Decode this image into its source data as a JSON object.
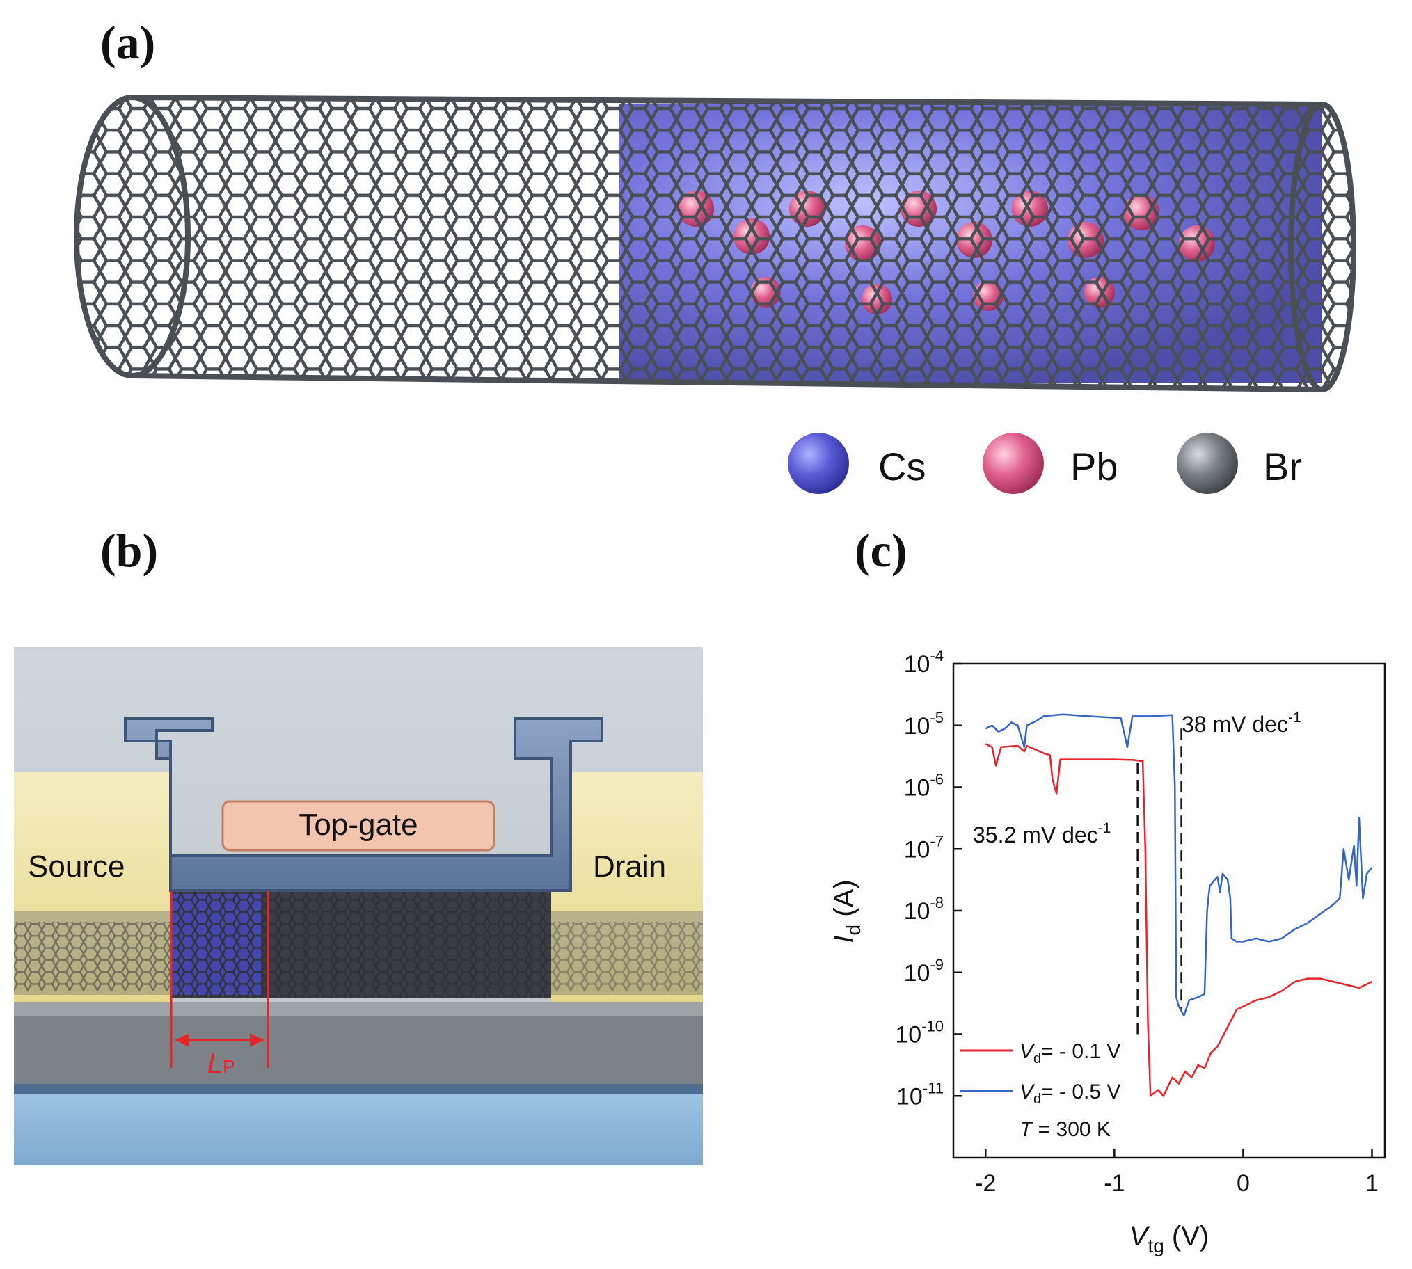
{
  "panels": {
    "a": {
      "label": "(a)"
    },
    "b": {
      "label": "(b)"
    },
    "c": {
      "label": "(c)"
    }
  },
  "legend_a": [
    {
      "symbol": "Cs",
      "color": "#5b5bd6"
    },
    {
      "symbol": "Pb",
      "color": "#e0608e"
    },
    {
      "symbol": "Br",
      "color": "#6e7378"
    }
  ],
  "device": {
    "source": "Source",
    "drain": "Drain",
    "top_gate": "Top-gate",
    "lp_main": "L",
    "lp_sub": "P"
  },
  "chart_data": {
    "type": "line",
    "xlabel_main": "V",
    "xlabel_sub": "tg",
    "xlabel_unit": " (V)",
    "ylabel_main": "I",
    "ylabel_sub": "d",
    "ylabel_unit": " (A)",
    "xlim": [
      -2.25,
      1.1
    ],
    "ylim_log10": [
      -12,
      -4
    ],
    "y_scale": "log",
    "x_ticks": [
      -2,
      -1,
      0,
      1
    ],
    "x_tick_labels": [
      "-2",
      "-1",
      "0",
      "1"
    ],
    "y_ticks_log10": [
      -11,
      -10,
      -9,
      -8,
      -7,
      -6,
      -5,
      -4
    ],
    "y_tick_base": "10",
    "y_tick_exps": [
      "-11",
      "-10",
      "-9",
      "-8",
      "-7",
      "-6",
      "-5",
      "-4"
    ],
    "annotations": {
      "ss_red": "35.2 mV dec",
      "ss_red_exp": "-1",
      "ss_blue": "38 mV dec",
      "ss_blue_exp": "-1",
      "temperature_main": "T",
      "temperature_rest": " = 300 K"
    },
    "legend": [
      {
        "main": "V",
        "sub": "d",
        "rest": "= - 0.1 V",
        "color": "#e8232a"
      },
      {
        "main": "V",
        "sub": "d",
        "rest": "= - 0.5 V",
        "color": "#3466c8"
      }
    ],
    "series": [
      {
        "color": "#e8232a",
        "points": [
          [
            -2.0,
            -5.3
          ],
          [
            -1.95,
            -5.35
          ],
          [
            -1.92,
            -5.65
          ],
          [
            -1.88,
            -5.35
          ],
          [
            -1.75,
            -5.33
          ],
          [
            -1.7,
            -5.42
          ],
          [
            -1.68,
            -5.33
          ],
          [
            -1.55,
            -5.45
          ],
          [
            -1.5,
            -5.48
          ],
          [
            -1.48,
            -5.88
          ],
          [
            -1.45,
            -6.1
          ],
          [
            -1.42,
            -5.55
          ],
          [
            -1.3,
            -5.55
          ],
          [
            -1.0,
            -5.55
          ],
          [
            -0.85,
            -5.56
          ],
          [
            -0.78,
            -5.58
          ],
          [
            -0.76,
            -7.0
          ],
          [
            -0.74,
            -9.8
          ],
          [
            -0.72,
            -11.0
          ],
          [
            -0.66,
            -10.9
          ],
          [
            -0.62,
            -11.0
          ],
          [
            -0.55,
            -10.7
          ],
          [
            -0.5,
            -10.8
          ],
          [
            -0.45,
            -10.6
          ],
          [
            -0.4,
            -10.7
          ],
          [
            -0.35,
            -10.5
          ],
          [
            -0.3,
            -10.55
          ],
          [
            -0.25,
            -10.3
          ],
          [
            -0.2,
            -10.2
          ],
          [
            -0.15,
            -10.0
          ],
          [
            -0.1,
            -9.8
          ],
          [
            -0.05,
            -9.6
          ],
          [
            0.0,
            -9.55
          ],
          [
            0.05,
            -9.5
          ],
          [
            0.1,
            -9.45
          ],
          [
            0.2,
            -9.4
          ],
          [
            0.3,
            -9.3
          ],
          [
            0.4,
            -9.15
          ],
          [
            0.5,
            -9.1
          ],
          [
            0.6,
            -9.1
          ],
          [
            0.7,
            -9.15
          ],
          [
            0.8,
            -9.2
          ],
          [
            0.9,
            -9.25
          ],
          [
            0.95,
            -9.2
          ],
          [
            1.0,
            -9.15
          ]
        ]
      },
      {
        "color": "#3466c8",
        "points": [
          [
            -2.0,
            -5.05
          ],
          [
            -1.95,
            -5.0
          ],
          [
            -1.9,
            -5.1
          ],
          [
            -1.85,
            -5.05
          ],
          [
            -1.8,
            -4.95
          ],
          [
            -1.75,
            -5.0
          ],
          [
            -1.7,
            -5.35
          ],
          [
            -1.68,
            -5.0
          ],
          [
            -1.6,
            -4.92
          ],
          [
            -1.55,
            -4.85
          ],
          [
            -1.4,
            -4.82
          ],
          [
            -1.2,
            -4.85
          ],
          [
            -0.95,
            -4.88
          ],
          [
            -0.9,
            -5.35
          ],
          [
            -0.86,
            -4.85
          ],
          [
            -0.72,
            -4.85
          ],
          [
            -0.55,
            -4.83
          ],
          [
            -0.53,
            -6.0
          ],
          [
            -0.52,
            -9.4
          ],
          [
            -0.5,
            -9.55
          ],
          [
            -0.46,
            -9.7
          ],
          [
            -0.42,
            -9.45
          ],
          [
            -0.35,
            -9.4
          ],
          [
            -0.3,
            -9.35
          ],
          [
            -0.28,
            -8.0
          ],
          [
            -0.26,
            -7.6
          ],
          [
            -0.2,
            -7.45
          ],
          [
            -0.18,
            -7.7
          ],
          [
            -0.16,
            -7.4
          ],
          [
            -0.12,
            -7.5
          ],
          [
            -0.1,
            -7.8
          ],
          [
            -0.09,
            -8.45
          ],
          [
            -0.05,
            -8.5
          ],
          [
            0.0,
            -8.5
          ],
          [
            0.1,
            -8.45
          ],
          [
            0.2,
            -8.5
          ],
          [
            0.3,
            -8.45
          ],
          [
            0.4,
            -8.3
          ],
          [
            0.5,
            -8.2
          ],
          [
            0.6,
            -8.05
          ],
          [
            0.7,
            -7.9
          ],
          [
            0.75,
            -7.8
          ],
          [
            0.78,
            -7.0
          ],
          [
            0.82,
            -7.5
          ],
          [
            0.86,
            -6.95
          ],
          [
            0.88,
            -7.6
          ],
          [
            0.9,
            -6.5
          ],
          [
            0.93,
            -7.8
          ],
          [
            0.96,
            -7.4
          ],
          [
            1.0,
            -7.3
          ]
        ]
      }
    ],
    "dashed_lines": [
      {
        "x": -0.82,
        "y_from": -5.6,
        "y_to": -10.0
      },
      {
        "x": -0.48,
        "y_from": -5.05,
        "y_to": -9.6
      }
    ]
  }
}
